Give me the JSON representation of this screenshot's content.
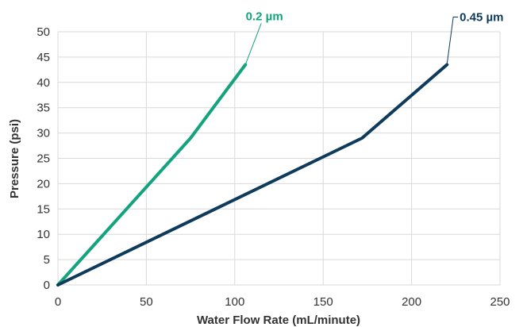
{
  "chart_data": {
    "type": "line",
    "xlabel": "Water Flow Rate (mL/minute)",
    "ylabel": "Pressure (psi)",
    "xlim": [
      0,
      250
    ],
    "ylim": [
      0,
      50
    ],
    "xticks": [
      0,
      50,
      100,
      150,
      200,
      250
    ],
    "yticks": [
      0,
      5,
      10,
      15,
      20,
      25,
      30,
      35,
      40,
      45,
      50
    ],
    "grid": true,
    "series": [
      {
        "name": "0.2 µm",
        "color": "#13a37e",
        "x": [
          0,
          75,
          106
        ],
        "y": [
          0,
          29,
          43.5
        ]
      },
      {
        "name": "0.45 µm",
        "color": "#0e3a5c",
        "x": [
          0,
          172,
          220
        ],
        "y": [
          0,
          29,
          43.5
        ]
      }
    ]
  }
}
